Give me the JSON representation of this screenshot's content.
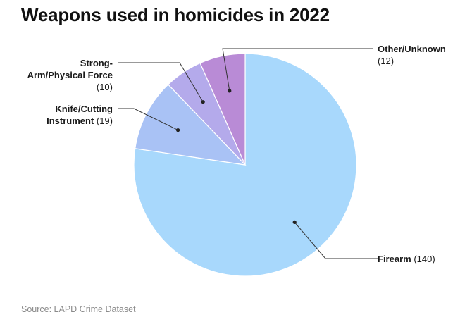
{
  "title": "Weapons used in homicides in 2022",
  "source": "Source: LAPD Crime Dataset",
  "chart_data": {
    "type": "pie",
    "title": "Weapons used in homicides in 2022",
    "slices": [
      {
        "label": "Firearm",
        "value": 140,
        "value_label": "(140)",
        "color": "#a8d8fc"
      },
      {
        "label": "Knife/Cutting Instrument",
        "value": 19,
        "value_label": "(19)",
        "color": "#a9c2f5"
      },
      {
        "label": "Strong-Arm/Physical Force",
        "value": 10,
        "value_label": "(10)",
        "color": "#b4aaeb"
      },
      {
        "label": "Other/Unknown",
        "value": 12,
        "value_label": "(12)",
        "color": "#b98bd6"
      }
    ],
    "start_angle": "12 o'clock",
    "direction": "clockwise"
  }
}
